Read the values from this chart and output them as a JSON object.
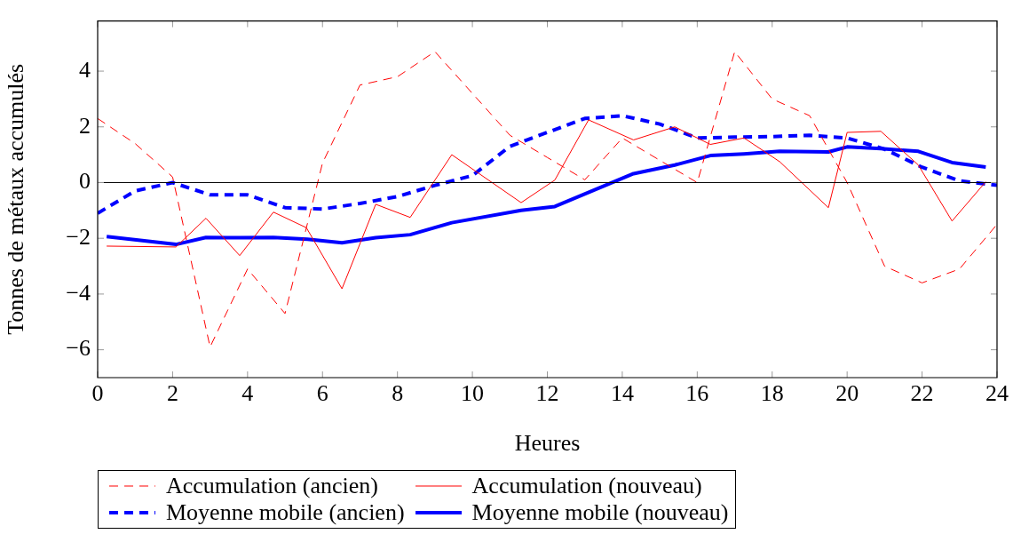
{
  "chart_data": {
    "type": "line",
    "xlabel": "Heures",
    "ylabel": "Tonnes de métaux accumulés",
    "xlim": [
      0,
      24
    ],
    "xticks": [
      0,
      2,
      4,
      6,
      8,
      10,
      12,
      14,
      16,
      18,
      20,
      22,
      24
    ],
    "ylim": [
      -7,
      5.8
    ],
    "yticks": [
      -6,
      -4,
      -2,
      0,
      2,
      4
    ],
    "legend": "bottom",
    "marker": "none",
    "ref_lines": [
      {
        "axis": "y",
        "value": 0,
        "color": "#000000",
        "line_style": "solid"
      }
    ],
    "series": [
      {
        "name": "Accumulation (ancien)",
        "color": "#ff0000",
        "line_style": "dashed",
        "x": [
          0,
          1,
          2,
          3,
          4,
          5,
          6,
          7,
          8,
          9,
          10,
          11,
          12,
          13,
          14,
          15,
          16,
          17,
          18,
          19,
          20,
          21,
          22,
          23,
          24
        ],
        "values": [
          2.3,
          1.4,
          0.2,
          -5.9,
          -3.1,
          -4.7,
          0.7,
          3.5,
          3.8,
          4.7,
          3.2,
          1.7,
          0.9,
          0.1,
          1.6,
          0.8,
          0.0,
          4.7,
          3.0,
          2.4,
          0.0,
          -3.0,
          -3.6,
          -3.1,
          -1.5
        ]
      },
      {
        "name": "Accumulation (nouveau)",
        "color": "#ff0000",
        "line_style": "solid",
        "x": [
          0.24,
          2.09,
          2.89,
          3.79,
          4.69,
          5.57,
          6.52,
          7.42,
          8.34,
          9.45,
          11.3,
          12.2,
          13.1,
          14.3,
          15.4,
          16.35,
          17.25,
          18.2,
          19.5,
          20.0,
          20.9,
          21.9,
          22.8,
          23.7
        ],
        "values": [
          -2.28,
          -2.31,
          -1.28,
          -2.62,
          -1.06,
          -1.62,
          -3.81,
          -0.78,
          -1.25,
          1.0,
          -0.72,
          0.09,
          2.25,
          1.53,
          2.0,
          1.37,
          1.6,
          0.75,
          -0.9,
          1.8,
          1.84,
          0.63,
          -1.38,
          0.03
        ]
      },
      {
        "name": "Moyenne mobile (ancien)",
        "color": "#0000ff",
        "line_style": "dashed",
        "x": [
          0,
          1,
          2,
          3,
          4,
          5,
          6,
          7,
          8,
          9,
          10,
          11,
          12,
          13,
          14,
          15,
          16,
          17,
          18,
          19,
          20,
          21,
          22,
          23,
          24
        ],
        "values": [
          -1.1,
          -0.3,
          0,
          -0.44,
          -0.44,
          -0.9,
          -0.95,
          -0.75,
          -0.5,
          -0.1,
          0.25,
          1.3,
          1.8,
          2.3,
          2.4,
          2.1,
          1.6,
          1.63,
          1.65,
          1.7,
          1.6,
          1.2,
          0.55,
          0.06,
          -0.1
        ]
      },
      {
        "name": "Moyenne mobile (nouveau)",
        "color": "#0000ff",
        "line_style": "solid",
        "x": [
          0.24,
          2.09,
          2.89,
          3.79,
          4.69,
          5.6,
          6.52,
          7.42,
          8.34,
          9.45,
          11.3,
          12.2,
          14.3,
          15.4,
          16.35,
          17.25,
          18.2,
          19.5,
          20.0,
          20.9,
          21.9,
          22.8,
          23.7
        ],
        "values": [
          -1.94,
          -2.22,
          -1.97,
          -1.98,
          -1.97,
          -2.03,
          -2.16,
          -1.98,
          -1.87,
          -1.44,
          -1.0,
          -0.86,
          0.32,
          0.63,
          0.97,
          1.03,
          1.12,
          1.1,
          1.28,
          1.22,
          1.12,
          0.72,
          0.56
        ]
      }
    ]
  }
}
